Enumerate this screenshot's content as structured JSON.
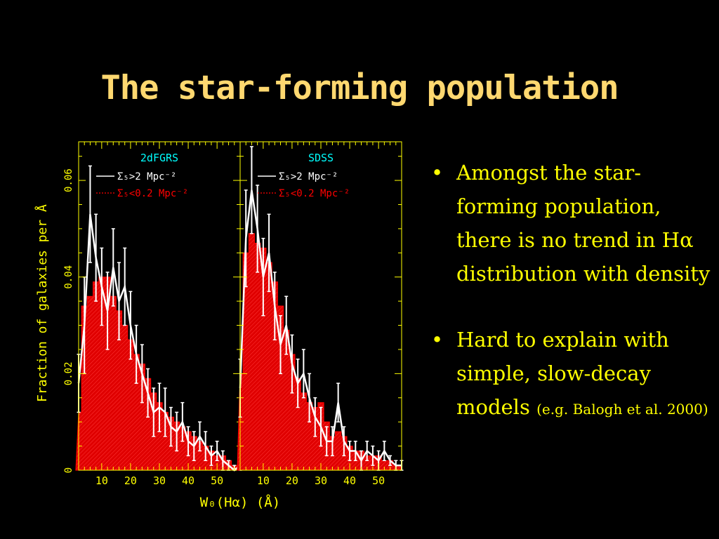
{
  "slide": {
    "title": "The star-forming population"
  },
  "bullets": [
    {
      "text": "Amongst the star-forming population, there is no trend in Hα distribution with density"
    },
    {
      "text": "Hard to explain with simple, slow-decay models",
      "citation": "(e.g. Balogh et al. 2000)"
    }
  ],
  "colors": {
    "title": "#ffd870",
    "bullet_text": "#ffff00",
    "axis": "#ffff00",
    "panel_label": "#00ffff",
    "low_density": "#ff0000",
    "high_density": "#ffffff"
  },
  "chart_data": {
    "type": "area",
    "ylabel": "Fraction of galaxies per Å",
    "xlabel": "W₀(Hα) (Å)",
    "xlim": [
      2,
      58
    ],
    "ylim": [
      0,
      0.068
    ],
    "x_ticks": [
      10,
      20,
      30,
      40,
      50
    ],
    "x_tick_labels": [
      "10",
      "20",
      "30",
      "40",
      "50"
    ],
    "y_ticks": [
      0,
      0.02,
      0.04,
      0.06
    ],
    "y_tick_labels": [
      "0",
      "0.02",
      "0.04",
      "0.06"
    ],
    "legend": [
      "Σ₅>2 Mpc⁻²",
      "Σ₅<0.2 Mpc⁻²"
    ],
    "panels": [
      {
        "label": "2dFGRS",
        "x": [
          2,
          4,
          6,
          8,
          10,
          12,
          14,
          16,
          18,
          20,
          22,
          24,
          26,
          28,
          30,
          32,
          34,
          36,
          38,
          40,
          42,
          44,
          46,
          48,
          50,
          52,
          54,
          56,
          58
        ],
        "series": [
          {
            "name": "Σ₅<0.2 Mpc⁻²",
            "fill": true,
            "values": [
              0.012,
              0.034,
              0.036,
              0.039,
              0.04,
              0.04,
              0.036,
              0.033,
              0.03,
              0.027,
              0.024,
              0.022,
              0.019,
              0.016,
              0.014,
              0.012,
              0.011,
              0.01,
              0.009,
              0.008,
              0.007,
              0.006,
              0.005,
              0.004,
              0.003,
              0.003,
              0.002,
              0.001,
              0.001
            ]
          },
          {
            "name": "Σ₅>2 Mpc⁻²",
            "fill": false,
            "values": [
              0.018,
              0.03,
              0.053,
              0.044,
              0.038,
              0.033,
              0.042,
              0.035,
              0.038,
              0.03,
              0.024,
              0.02,
              0.016,
              0.012,
              0.013,
              0.012,
              0.009,
              0.008,
              0.01,
              0.006,
              0.005,
              0.007,
              0.005,
              0.003,
              0.004,
              0.002,
              0.001,
              0.0,
              0.001
            ],
            "errors": [
              0.006,
              0.01,
              0.01,
              0.009,
              0.008,
              0.008,
              0.008,
              0.008,
              0.008,
              0.007,
              0.006,
              0.006,
              0.005,
              0.005,
              0.005,
              0.005,
              0.004,
              0.004,
              0.004,
              0.003,
              0.003,
              0.003,
              0.003,
              0.002,
              0.002,
              0.002,
              0.001,
              0.001,
              0.001
            ]
          }
        ]
      },
      {
        "label": "SDSS",
        "x": [
          2,
          4,
          6,
          8,
          10,
          12,
          14,
          16,
          18,
          20,
          22,
          24,
          26,
          28,
          30,
          32,
          34,
          36,
          38,
          40,
          42,
          44,
          46,
          48,
          50,
          52,
          54,
          56,
          58
        ],
        "series": [
          {
            "name": "Σ₅<0.2 Mpc⁻²",
            "fill": true,
            "values": [
              0.02,
              0.045,
              0.049,
              0.047,
              0.046,
              0.043,
              0.039,
              0.034,
              0.029,
              0.024,
              0.019,
              0.016,
              0.014,
              0.013,
              0.014,
              0.01,
              0.007,
              0.008,
              0.007,
              0.005,
              0.004,
              0.004,
              0.003,
              0.003,
              0.003,
              0.002,
              0.002,
              0.001,
              0.001
            ]
          },
          {
            "name": "Σ₅>2 Mpc⁻²",
            "fill": false,
            "values": [
              0.017,
              0.048,
              0.058,
              0.05,
              0.04,
              0.045,
              0.034,
              0.026,
              0.03,
              0.022,
              0.018,
              0.02,
              0.015,
              0.011,
              0.009,
              0.006,
              0.006,
              0.014,
              0.006,
              0.004,
              0.004,
              0.002,
              0.004,
              0.003,
              0.002,
              0.004,
              0.002,
              0.001,
              0.001
            ],
            "errors": [
              0.006,
              0.01,
              0.009,
              0.009,
              0.008,
              0.008,
              0.007,
              0.006,
              0.006,
              0.006,
              0.005,
              0.005,
              0.005,
              0.004,
              0.004,
              0.003,
              0.003,
              0.004,
              0.003,
              0.002,
              0.002,
              0.002,
              0.002,
              0.002,
              0.002,
              0.002,
              0.001,
              0.001,
              0.001
            ]
          }
        ]
      }
    ]
  }
}
